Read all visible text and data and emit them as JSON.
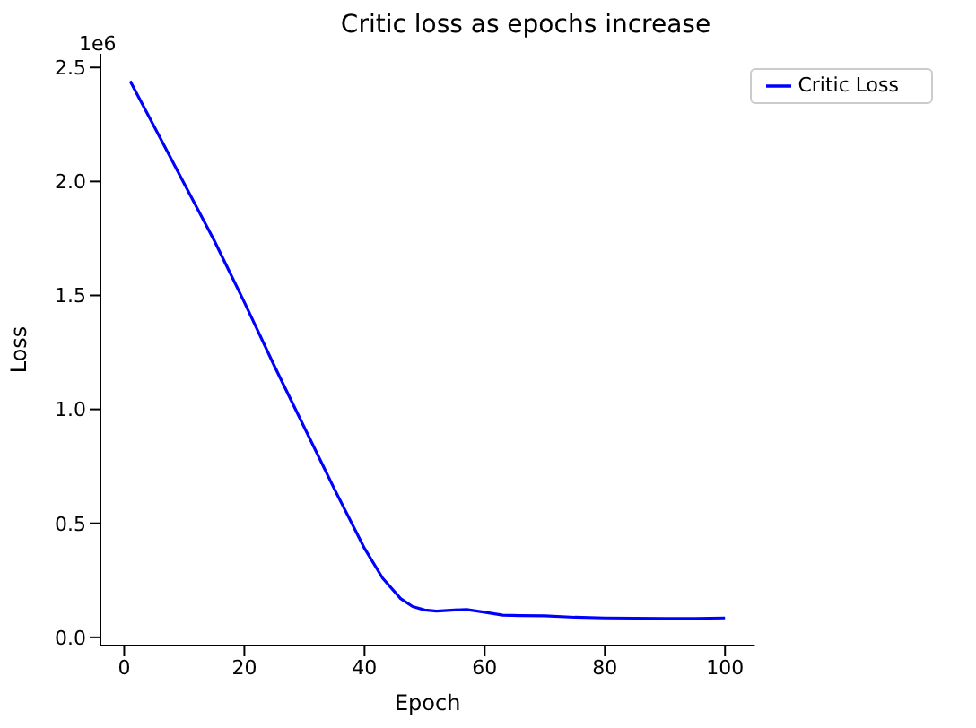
{
  "chart_data": {
    "type": "line",
    "title": "Critic loss as epochs increase",
    "xlabel": "Epoch",
    "ylabel": "Loss",
    "annotations": [
      "1e6"
    ],
    "x": [
      1,
      5,
      10,
      15,
      20,
      25,
      30,
      35,
      40,
      43,
      46,
      48,
      50,
      52,
      55,
      57,
      60,
      63,
      66,
      70,
      75,
      80,
      85,
      90,
      95,
      100
    ],
    "series": [
      {
        "name": "Critic Loss",
        "color": "#0000ff",
        "values": [
          2.44,
          2.24,
          1.99,
          1.74,
          1.47,
          1.19,
          0.92,
          0.65,
          0.39,
          0.26,
          0.17,
          0.135,
          0.12,
          0.115,
          0.12,
          0.122,
          0.11,
          0.097,
          0.095,
          0.094,
          0.088,
          0.085,
          0.084,
          0.083,
          0.083,
          0.085
        ]
      }
    ],
    "xlim": [
      -3.95,
      104.95
    ],
    "ylim": [
      -0.036,
      2.56
    ],
    "xticks": [
      0,
      20,
      40,
      60,
      80,
      100
    ],
    "yticks": [
      {
        "value": 0,
        "label": "0.0"
      },
      {
        "value": 0.5,
        "label": "0.5"
      },
      {
        "value": 1,
        "label": "1.0"
      },
      {
        "value": 1.5,
        "label": "1.5"
      },
      {
        "value": 2,
        "label": "2.0"
      },
      {
        "value": 2.5,
        "label": "2.5"
      }
    ],
    "grid": false,
    "legend": "top right",
    "marker": "none",
    "line_style": "solid"
  }
}
